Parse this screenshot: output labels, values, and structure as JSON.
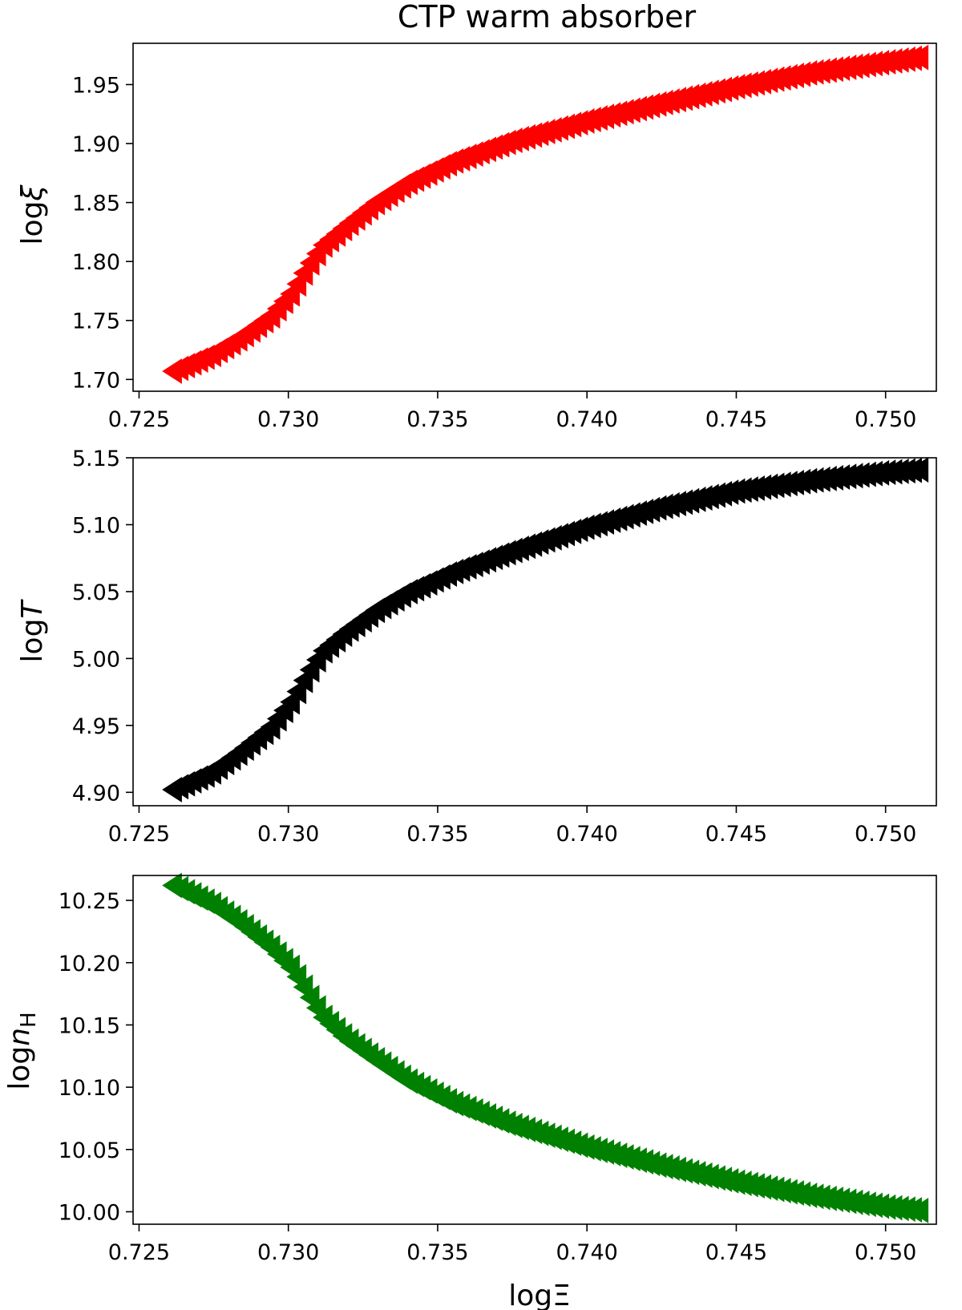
{
  "figure": {
    "title": "CTP warm absorber",
    "xlabel": "logΞ"
  },
  "chart_data": [
    {
      "type": "scatter",
      "marker": "triangle-left",
      "color": "#ff0000",
      "title": "CTP warm absorber",
      "xlabel": "",
      "ylabel": "logξ",
      "xlim": [
        0.7248,
        0.7517
      ],
      "ylim": [
        1.69,
        1.985
      ],
      "xticks": [
        "0.725",
        "0.730",
        "0.735",
        "0.740",
        "0.745",
        "0.750"
      ],
      "yticks": [
        "1.70",
        "1.75",
        "1.80",
        "1.85",
        "1.90",
        "1.95"
      ],
      "curve": [
        [
          0.7262,
          1.707
        ],
        [
          0.7275,
          1.721
        ],
        [
          0.7285,
          1.736
        ],
        [
          0.7295,
          1.754
        ],
        [
          0.7302,
          1.774
        ],
        [
          0.7307,
          1.795
        ],
        [
          0.7312,
          1.813
        ],
        [
          0.732,
          1.83
        ],
        [
          0.733,
          1.85
        ],
        [
          0.734,
          1.866
        ],
        [
          0.7355,
          1.884
        ],
        [
          0.7375,
          1.902
        ],
        [
          0.74,
          1.919
        ],
        [
          0.7425,
          1.934
        ],
        [
          0.745,
          1.948
        ],
        [
          0.7475,
          1.96
        ],
        [
          0.75,
          1.969
        ],
        [
          0.7512,
          1.973
        ]
      ],
      "n_points": 115
    },
    {
      "type": "scatter",
      "marker": "triangle-left",
      "color": "#000000",
      "xlabel": "",
      "ylabel": "logT",
      "xlim": [
        0.7248,
        0.7517
      ],
      "ylim": [
        4.89,
        5.15
      ],
      "xticks": [
        "0.725",
        "0.730",
        "0.735",
        "0.740",
        "0.745",
        "0.750"
      ],
      "yticks": [
        "4.90",
        "4.95",
        "5.00",
        "5.05",
        "5.10",
        "5.15"
      ],
      "curve": [
        [
          0.7262,
          4.902
        ],
        [
          0.7275,
          4.915
        ],
        [
          0.7285,
          4.931
        ],
        [
          0.7295,
          4.949
        ],
        [
          0.7302,
          4.969
        ],
        [
          0.7307,
          4.988
        ],
        [
          0.7312,
          5.005
        ],
        [
          0.732,
          5.02
        ],
        [
          0.733,
          5.036
        ],
        [
          0.734,
          5.049
        ],
        [
          0.7355,
          5.064
        ],
        [
          0.7375,
          5.08
        ],
        [
          0.74,
          5.098
        ],
        [
          0.7425,
          5.113
        ],
        [
          0.745,
          5.125
        ],
        [
          0.7475,
          5.133
        ],
        [
          0.75,
          5.139
        ],
        [
          0.7512,
          5.141
        ]
      ],
      "n_points": 115
    },
    {
      "type": "scatter",
      "marker": "triangle-left",
      "color": "#008000",
      "xlabel": "logΞ",
      "ylabel": "logn",
      "ylabel_sub": "H",
      "xlim": [
        0.7248,
        0.7517
      ],
      "ylim": [
        9.99,
        10.27
      ],
      "xticks": [
        "0.725",
        "0.730",
        "0.735",
        "0.740",
        "0.745",
        "0.750"
      ],
      "yticks": [
        "10.00",
        "10.05",
        "10.10",
        "10.15",
        "10.20",
        "10.25"
      ],
      "curve": [
        [
          0.7262,
          10.262
        ],
        [
          0.7275,
          10.247
        ],
        [
          0.7285,
          10.231
        ],
        [
          0.7295,
          10.212
        ],
        [
          0.7302,
          10.195
        ],
        [
          0.7307,
          10.176
        ],
        [
          0.7312,
          10.157
        ],
        [
          0.732,
          10.139
        ],
        [
          0.733,
          10.122
        ],
        [
          0.734,
          10.106
        ],
        [
          0.7355,
          10.088
        ],
        [
          0.7375,
          10.07
        ],
        [
          0.74,
          10.052
        ],
        [
          0.7425,
          10.037
        ],
        [
          0.745,
          10.024
        ],
        [
          0.7475,
          10.013
        ],
        [
          0.75,
          10.004
        ],
        [
          0.7512,
          10.001
        ]
      ],
      "n_points": 115
    }
  ]
}
